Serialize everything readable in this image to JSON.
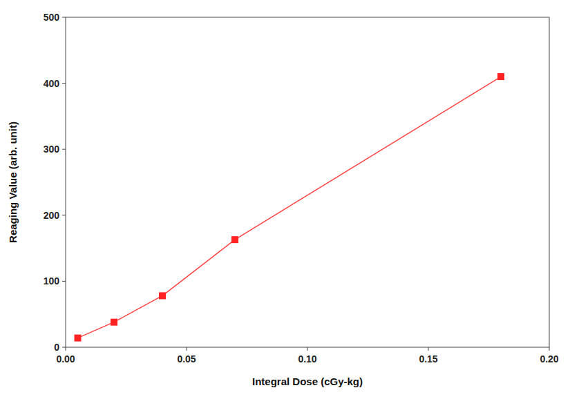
{
  "chart_data": {
    "type": "line",
    "x": [
      0.005,
      0.02,
      0.04,
      0.07,
      0.18
    ],
    "values": [
      14,
      38,
      78,
      163,
      410
    ],
    "color": "#ff4444",
    "colors": [
      "#ff2222",
      "#ff2222",
      "#ff2222",
      "#ff2222",
      "#ff2222"
    ],
    "marker": "square",
    "xlabel": "Integral Dose (cGy-kg)",
    "ylabel": "Reaging Value (arb. unit)",
    "xlim": [
      0.0,
      0.2
    ],
    "ylim": [
      0,
      500
    ],
    "xticks": [
      {
        "value": 0.0,
        "label": "0.00"
      },
      0.05,
      {
        "value": 0.1,
        "label": "0.10"
      },
      0.15,
      {
        "value": 0.2,
        "label": "0.20"
      }
    ],
    "yticks": [
      0,
      100,
      200,
      300,
      400,
      500
    ],
    "grid": false
  }
}
